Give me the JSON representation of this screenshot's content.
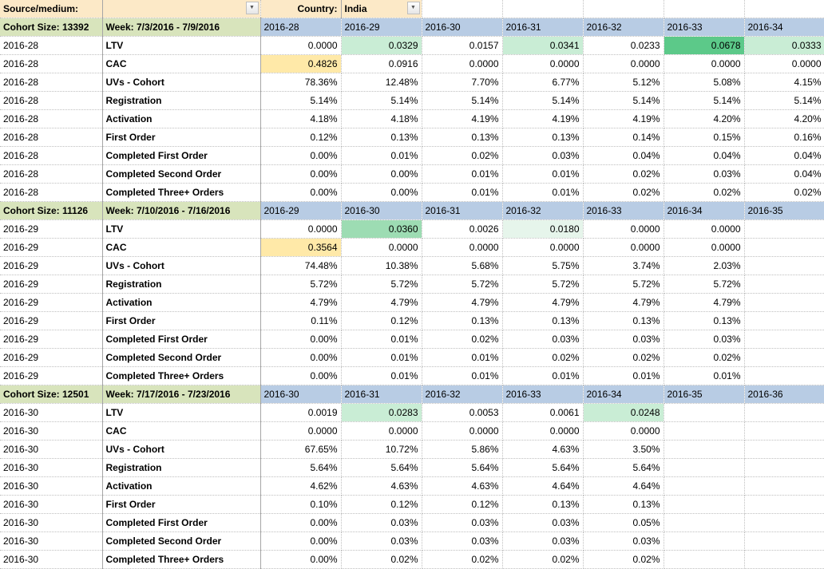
{
  "filters": {
    "source_medium_label": "Source/medium:",
    "source_medium_value": "",
    "country_label": "Country:",
    "country_value": "India"
  },
  "metrics": [
    "LTV",
    "CAC",
    "UVs - Cohort",
    "Registration",
    "Activation",
    "First Order",
    "Completed First Order",
    "Completed Second Order",
    "Completed Three+ Orders"
  ],
  "cohorts": [
    {
      "id": "2016-28",
      "size": "13392",
      "week": "Week: 7/3/2016 - 7/9/2016",
      "periods": [
        "2016-28",
        "2016-29",
        "2016-30",
        "2016-31",
        "2016-32",
        "2016-33",
        "2016-34"
      ],
      "rows": [
        {
          "v": [
            "0.0000",
            "0.0329",
            "0.0157",
            "0.0341",
            "0.0233",
            "0.0678",
            "0.0333"
          ],
          "hl": [
            0,
            2,
            0,
            2,
            0,
            4,
            2
          ]
        },
        {
          "v": [
            "0.4826",
            "0.0916",
            "0.0000",
            "0.0000",
            "0.0000",
            "0.0000",
            "0.0000"
          ],
          "hl": [
            0,
            0,
            0,
            0,
            0,
            0,
            0
          ],
          "cacmax": 0
        },
        {
          "v": [
            "78.36%",
            "12.48%",
            "7.70%",
            "6.77%",
            "5.12%",
            "5.08%",
            "4.15%"
          ]
        },
        {
          "v": [
            "5.14%",
            "5.14%",
            "5.14%",
            "5.14%",
            "5.14%",
            "5.14%",
            "5.14%"
          ]
        },
        {
          "v": [
            "4.18%",
            "4.18%",
            "4.19%",
            "4.19%",
            "4.19%",
            "4.20%",
            "4.20%"
          ]
        },
        {
          "v": [
            "0.12%",
            "0.13%",
            "0.13%",
            "0.13%",
            "0.14%",
            "0.15%",
            "0.16%"
          ]
        },
        {
          "v": [
            "0.00%",
            "0.01%",
            "0.02%",
            "0.03%",
            "0.04%",
            "0.04%",
            "0.04%"
          ]
        },
        {
          "v": [
            "0.00%",
            "0.00%",
            "0.01%",
            "0.01%",
            "0.02%",
            "0.03%",
            "0.04%"
          ]
        },
        {
          "v": [
            "0.00%",
            "0.00%",
            "0.01%",
            "0.01%",
            "0.02%",
            "0.02%",
            "0.02%"
          ]
        }
      ]
    },
    {
      "id": "2016-29",
      "size": "11126",
      "week": "Week: 7/10/2016 - 7/16/2016",
      "periods": [
        "2016-29",
        "2016-30",
        "2016-31",
        "2016-32",
        "2016-33",
        "2016-34",
        "2016-35"
      ],
      "rows": [
        {
          "v": [
            "0.0000",
            "0.0360",
            "0.0026",
            "0.0180",
            "0.0000",
            "0.0000",
            ""
          ],
          "hl": [
            0,
            3,
            0,
            1,
            0,
            0,
            0
          ]
        },
        {
          "v": [
            "0.3564",
            "0.0000",
            "0.0000",
            "0.0000",
            "0.0000",
            "0.0000",
            ""
          ],
          "hl": [
            0,
            0,
            0,
            0,
            0,
            0,
            0
          ],
          "cacmax": 0
        },
        {
          "v": [
            "74.48%",
            "10.38%",
            "5.68%",
            "5.75%",
            "3.74%",
            "2.03%",
            ""
          ]
        },
        {
          "v": [
            "5.72%",
            "5.72%",
            "5.72%",
            "5.72%",
            "5.72%",
            "5.72%",
            ""
          ]
        },
        {
          "v": [
            "4.79%",
            "4.79%",
            "4.79%",
            "4.79%",
            "4.79%",
            "4.79%",
            ""
          ]
        },
        {
          "v": [
            "0.11%",
            "0.12%",
            "0.13%",
            "0.13%",
            "0.13%",
            "0.13%",
            ""
          ]
        },
        {
          "v": [
            "0.00%",
            "0.01%",
            "0.02%",
            "0.03%",
            "0.03%",
            "0.03%",
            ""
          ]
        },
        {
          "v": [
            "0.00%",
            "0.01%",
            "0.01%",
            "0.02%",
            "0.02%",
            "0.02%",
            ""
          ]
        },
        {
          "v": [
            "0.00%",
            "0.01%",
            "0.01%",
            "0.01%",
            "0.01%",
            "0.01%",
            ""
          ]
        }
      ]
    },
    {
      "id": "2016-30",
      "size": "12501",
      "week": "Week: 7/17/2016 - 7/23/2016",
      "periods": [
        "2016-30",
        "2016-31",
        "2016-32",
        "2016-33",
        "2016-34",
        "2016-35",
        "2016-36"
      ],
      "rows": [
        {
          "v": [
            "0.0019",
            "0.0283",
            "0.0053",
            "0.0061",
            "0.0248",
            "",
            ""
          ],
          "hl": [
            0,
            2,
            0,
            0,
            2,
            0,
            0
          ]
        },
        {
          "v": [
            "0.0000",
            "0.0000",
            "0.0000",
            "0.0000",
            "0.0000",
            "",
            ""
          ]
        },
        {
          "v": [
            "67.65%",
            "10.72%",
            "5.86%",
            "4.63%",
            "3.50%",
            "",
            ""
          ]
        },
        {
          "v": [
            "5.64%",
            "5.64%",
            "5.64%",
            "5.64%",
            "5.64%",
            "",
            ""
          ]
        },
        {
          "v": [
            "4.62%",
            "4.63%",
            "4.63%",
            "4.64%",
            "4.64%",
            "",
            ""
          ]
        },
        {
          "v": [
            "0.10%",
            "0.12%",
            "0.12%",
            "0.13%",
            "0.13%",
            "",
            ""
          ]
        },
        {
          "v": [
            "0.00%",
            "0.03%",
            "0.03%",
            "0.03%",
            "0.05%",
            "",
            ""
          ]
        },
        {
          "v": [
            "0.00%",
            "0.03%",
            "0.03%",
            "0.03%",
            "0.03%",
            "",
            ""
          ]
        },
        {
          "v": [
            "0.00%",
            "0.02%",
            "0.02%",
            "0.02%",
            "0.02%",
            "",
            ""
          ]
        }
      ]
    }
  ],
  "style": {
    "hl_colors": {
      "1": "#e6f5eb",
      "2": "#c9edd5",
      "3": "#9ddcb3",
      "4": "#5cc989"
    },
    "header_bg": "#fce9c7",
    "cohort_left_bg": "#d8e4bc",
    "week_bg": "#b8cce4"
  }
}
